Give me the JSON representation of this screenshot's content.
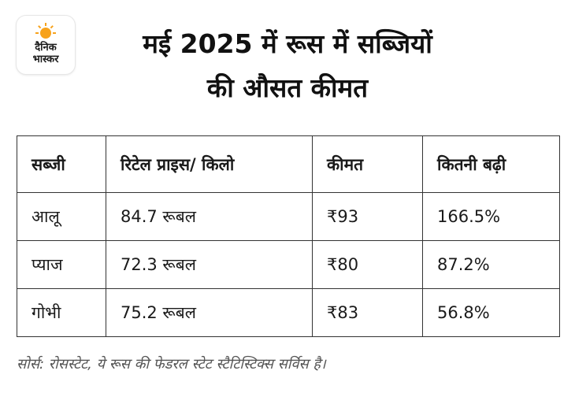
{
  "logo": {
    "line1": "दैनिक",
    "line2": "भास्कर",
    "sun_color": "#f7a21b"
  },
  "title": {
    "line1": "मई 2025 में रूस में सब्जियों",
    "line2": "की औसत कीमत"
  },
  "table": {
    "headers": [
      "सब्जी",
      "रिटेल प्राइस/ किलो",
      "कीमत",
      "कितनी बढ़ी"
    ],
    "rows": [
      [
        "आलू",
        "84.7 रूबल",
        "₹93",
        "166.5%"
      ],
      [
        "प्याज",
        "72.3 रूबल",
        "₹80",
        "87.2%"
      ],
      [
        "गोभी",
        "75.2 रूबल",
        "₹83",
        "56.8%"
      ]
    ]
  },
  "source": "सोर्स: रोसस्टेट, ये रूस की फेडरल स्टेट स्टैटिस्टिक्स सर्विस है।"
}
